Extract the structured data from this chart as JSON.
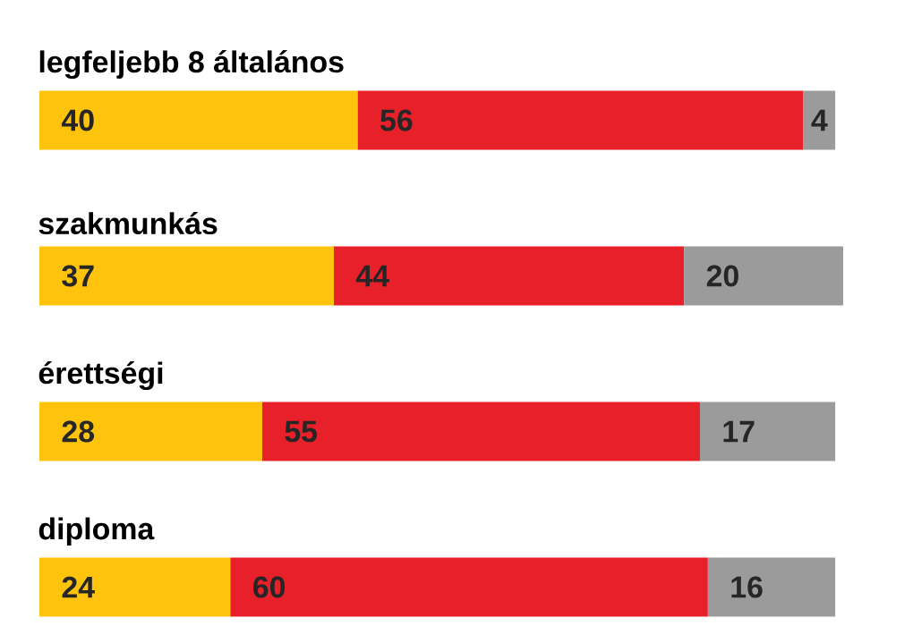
{
  "chart_data": {
    "type": "bar",
    "orientation": "horizontal",
    "stacked": true,
    "data_labels": true,
    "tick_labels": false,
    "xlim": [
      0,
      101
    ],
    "categories": [
      "legfeljebb 8 általános",
      "szakmunkás",
      "érettségi",
      "diploma"
    ],
    "series": [
      {
        "color": "#fec40d",
        "values": [
          40,
          37,
          28,
          24
        ]
      },
      {
        "color": "#e8202a",
        "values": [
          56,
          44,
          55,
          60
        ]
      },
      {
        "color": "#9b9b9b",
        "values": [
          4,
          20,
          17,
          16
        ]
      }
    ]
  }
}
